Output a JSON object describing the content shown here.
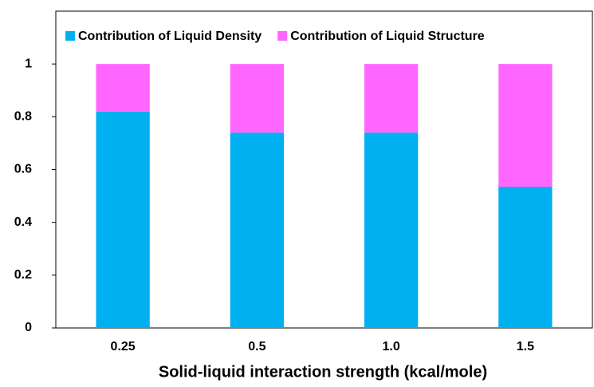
{
  "chart_data": {
    "type": "stacked-bar",
    "x_label": "Solid-liquid interaction strength (kcal/mole)",
    "categories": [
      "0.25",
      "0.5",
      "1.0",
      "1.5"
    ],
    "series": [
      {
        "name": "Contribution of Liquid Density",
        "color": "#00b0f0",
        "values": [
          0.82,
          0.74,
          0.74,
          0.535
        ]
      },
      {
        "name": "Contribution of Liquid Structure",
        "color": "#ff66ff",
        "values": [
          0.18,
          0.26,
          0.26,
          0.465
        ]
      }
    ],
    "ylim": [
      0,
      1.2
    ],
    "yticks": [
      0,
      0.2,
      0.4,
      0.6,
      0.8,
      1
    ],
    "grid": false,
    "legend": "top"
  }
}
